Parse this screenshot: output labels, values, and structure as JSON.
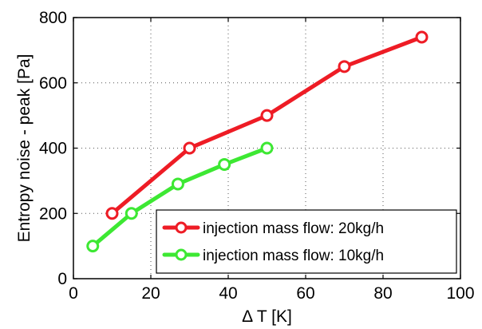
{
  "chart_data": {
    "type": "line",
    "xlabel": "Δ T [K]",
    "ylabel": "Entropy noise - peak [Pa]",
    "xlim": [
      0,
      100
    ],
    "ylim": [
      0,
      800
    ],
    "xticks": [
      0,
      20,
      40,
      60,
      80,
      100
    ],
    "yticks": [
      0,
      200,
      400,
      600,
      800
    ],
    "grid": true,
    "legend_position": "bottom-right",
    "series": [
      {
        "name": "injection mass flow: 20kg/h",
        "color": "#ee1c25",
        "x": [
          10,
          30,
          50,
          70,
          90
        ],
        "y": [
          200,
          400,
          500,
          650,
          740
        ]
      },
      {
        "name": "injection mass flow: 10kg/h",
        "color": "#3de833",
        "x": [
          5,
          15,
          27,
          39,
          50
        ],
        "y": [
          100,
          200,
          290,
          350,
          400
        ]
      }
    ]
  }
}
